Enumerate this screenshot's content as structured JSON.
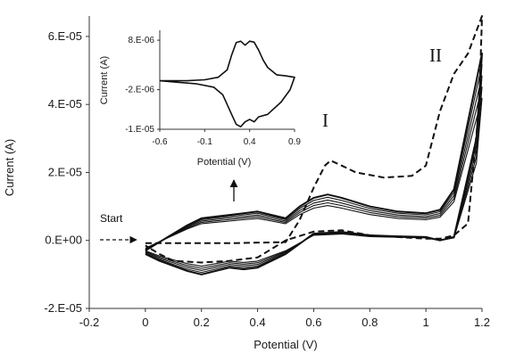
{
  "chart_data": [
    {
      "type": "line",
      "title": "",
      "xlabel": "Potential (V)",
      "ylabel": "Current (A)",
      "xlim": [
        -0.2,
        1.2
      ],
      "ylim": [
        -2e-05,
        6.6e-05
      ],
      "x_ticks": [
        "-0.2",
        "0",
        "0.2",
        "0.4",
        "0.6",
        "0.8",
        "1",
        "1.2"
      ],
      "y_ticks": [
        "-2.E-05",
        "0.E+00",
        "2.E-05",
        "4.E-05",
        "6.E-05"
      ],
      "annotations": [
        "Start",
        "I",
        "II"
      ],
      "series": [
        {
          "style": "dashed",
          "x": [
            0.0,
            0.3,
            0.5,
            0.55,
            0.6,
            0.64,
            0.66,
            0.7,
            0.75,
            0.85,
            0.95,
            1.0,
            1.05,
            1.1,
            1.15,
            1.2,
            1.19,
            1.15,
            1.1,
            1.05,
            1.0,
            0.9,
            0.8,
            0.7,
            0.6,
            0.5,
            0.4,
            0.3,
            0.2,
            0.1,
            0.05,
            0.0
          ],
          "y": [
            -8e-07,
            -8e-07,
            -5e-07,
            6e-06,
            1.55e-05,
            2.2e-05,
            2.35e-05,
            2.2e-05,
            2e-05,
            1.85e-05,
            1.9e-05,
            2.2e-05,
            3.8e-05,
            4.9e-05,
            5.5e-05,
            6.6e-05,
            4e-05,
            5e-06,
            1.5e-06,
            5e-07,
            5e-07,
            1e-06,
            1.5e-06,
            3e-06,
            2.6e-06,
            0.0,
            -5e-06,
            -6e-06,
            -6.5e-06,
            -6e-06,
            -4e-06,
            -1.5e-06
          ]
        },
        {
          "style": "solid",
          "cycles": 5,
          "x": [
            0.0,
            0.08,
            0.15,
            0.2,
            0.25,
            0.3,
            0.35,
            0.4,
            0.45,
            0.5,
            0.55,
            0.6,
            0.65,
            0.7,
            0.8,
            0.9,
            1.0,
            1.05,
            1.1,
            1.15,
            1.2,
            1.18,
            1.1,
            1.05,
            1.0,
            0.9,
            0.8,
            0.7,
            0.6,
            0.5,
            0.4,
            0.35,
            0.3,
            0.25,
            0.2,
            0.15,
            0.1,
            0.05,
            0.0
          ],
          "y": [
            -3e-06,
            1e-06,
            4.5e-06,
            6.5e-06,
            7e-06,
            7.5e-06,
            8e-06,
            8.5e-06,
            7.5e-06,
            6.5e-06,
            1e-05,
            1.25e-05,
            1.35e-05,
            1.25e-05,
            1e-05,
            8.5e-06,
            8e-06,
            9e-06,
            1.5e-05,
            3.5e-05,
            5.5e-05,
            3e-05,
            1e-06,
            0.0,
            1e-06,
            1.2e-06,
            1.5e-06,
            2.5e-06,
            2e-06,
            -4e-06,
            -8e-06,
            -8.5e-06,
            -8e-06,
            -9e-06,
            -1e-05,
            -9e-06,
            -7.5e-06,
            -6e-06,
            -4e-06
          ]
        }
      ]
    },
    {
      "type": "line",
      "title": "",
      "xlabel": "Potential (V)",
      "ylabel": "Current (A)",
      "xlim": [
        -0.6,
        0.9
      ],
      "ylim": [
        -1e-05,
        1e-05
      ],
      "x_ticks": [
        "-0.6",
        "-0.1",
        "0.4",
        "0.9"
      ],
      "y_ticks": [
        "-1.E-05",
        "-2.E-06",
        "8.E-06"
      ],
      "series": [
        {
          "style": "solid",
          "x": [
            -0.6,
            -0.3,
            -0.1,
            0.05,
            0.15,
            0.2,
            0.25,
            0.3,
            0.35,
            0.4,
            0.45,
            0.5,
            0.55,
            0.6,
            0.7,
            0.8,
            0.9,
            0.85,
            0.75,
            0.6,
            0.5,
            0.45,
            0.4,
            0.35,
            0.3,
            0.25,
            0.2,
            0.1,
            0.0,
            -0.2,
            -0.4,
            -0.6
          ],
          "y": [
            -2e-07,
            -2e-07,
            0.0,
            5e-07,
            2e-06,
            5e-06,
            7.5e-06,
            7.8e-06,
            7e-06,
            7.8e-06,
            7.6e-06,
            6e-06,
            4e-06,
            2.5e-06,
            1e-06,
            8e-07,
            5e-07,
            -2e-06,
            -4.5e-06,
            -7e-06,
            -7.5e-06,
            -8.5e-06,
            -8e-06,
            -8.5e-06,
            -9.5e-06,
            -9e-06,
            -7e-06,
            -3e-06,
            -1.5e-06,
            -8e-07,
            -5e-07,
            -2e-07
          ]
        }
      ]
    }
  ]
}
